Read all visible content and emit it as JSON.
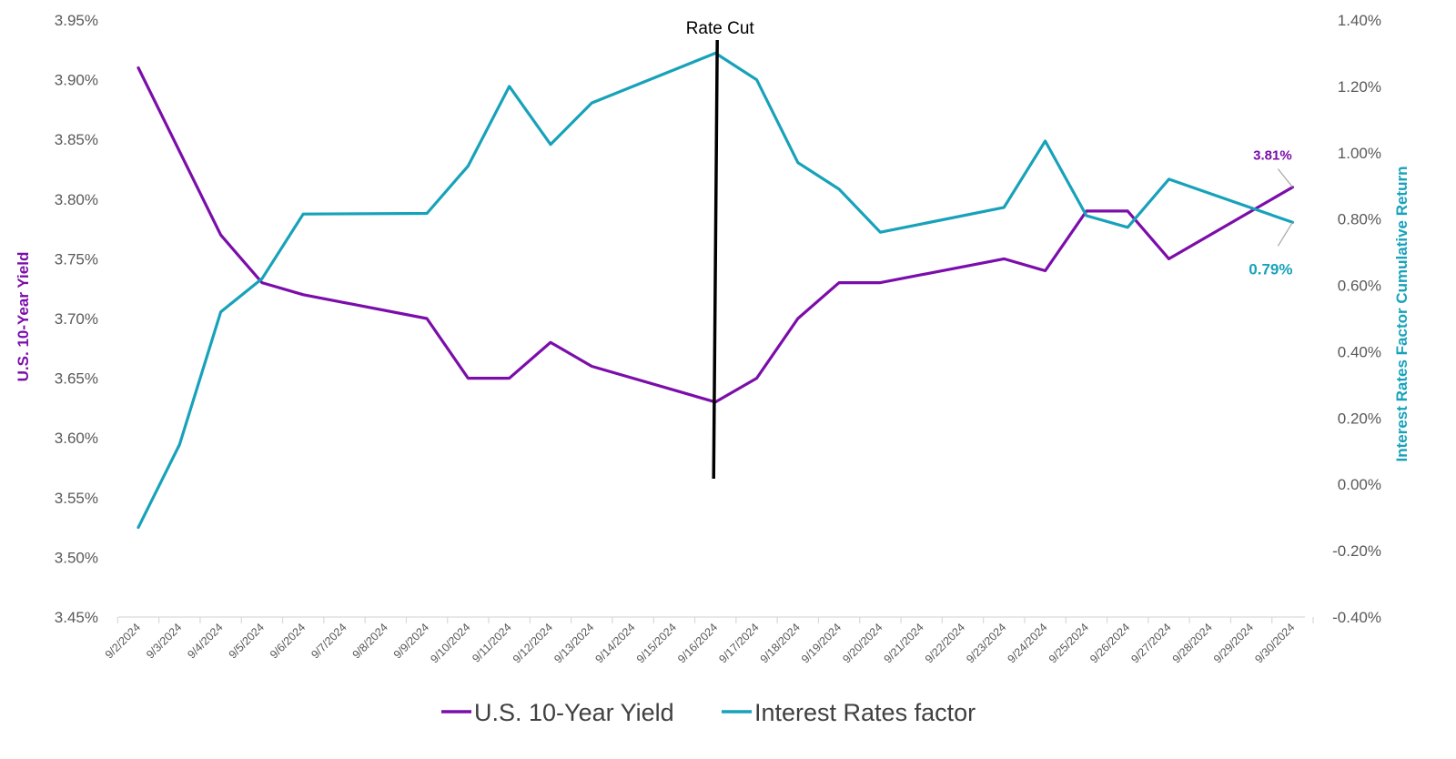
{
  "chart_data": {
    "type": "line",
    "categories": [
      "9/2/2024",
      "9/3/2024",
      "9/4/2024",
      "9/5/2024",
      "9/6/2024",
      "9/7/2024",
      "9/8/2024",
      "9/9/2024",
      "9/10/2024",
      "9/11/2024",
      "9/12/2024",
      "9/13/2024",
      "9/14/2024",
      "9/15/2024",
      "9/16/2024",
      "9/17/2024",
      "9/18/2024",
      "9/19/2024",
      "9/20/2024",
      "9/21/2024",
      "9/22/2024",
      "9/23/2024",
      "9/24/2024",
      "9/25/2024",
      "9/26/2024",
      "9/27/2024",
      "9/28/2024",
      "9/29/2024",
      "9/30/2024"
    ],
    "series": [
      {
        "name": "U.S. 10-Year Yield",
        "axis": "left",
        "color": "#7B0DAB",
        "values": [
          3.91,
          null,
          3.77,
          3.73,
          3.72,
          null,
          null,
          3.7,
          3.65,
          3.65,
          3.68,
          3.66,
          null,
          null,
          3.63,
          3.65,
          3.7,
          3.73,
          3.73,
          null,
          null,
          3.75,
          3.74,
          3.79,
          3.79,
          3.75,
          null,
          null,
          3.81
        ]
      },
      {
        "name": "Interest Rates factor",
        "axis": "right",
        "color": "#17A2BA",
        "values": [
          -0.13,
          0.12,
          0.52,
          0.62,
          0.815,
          null,
          null,
          0.817,
          0.96,
          1.2,
          1.025,
          1.15,
          null,
          null,
          1.3,
          1.22,
          0.97,
          0.89,
          0.76,
          null,
          null,
          0.835,
          1.035,
          0.81,
          0.775,
          0.92,
          null,
          null,
          0.79
        ]
      }
    ],
    "y_left": {
      "label": "U.S. 10-Year Yield",
      "ylim": [
        3.45,
        3.95
      ],
      "ticks": [
        "3.95%",
        "3.90%",
        "3.85%",
        "3.80%",
        "3.75%",
        "3.70%",
        "3.65%",
        "3.60%",
        "3.55%",
        "3.50%",
        "3.45%"
      ]
    },
    "y_right": {
      "label": "Interest Rates Factor Cumulative Return",
      "ylim": [
        -0.4,
        1.4
      ],
      "ticks": [
        "1.40%",
        "1.20%",
        "1.00%",
        "0.80%",
        "0.60%",
        "0.40%",
        "0.20%",
        "0.00%",
        "-0.20%",
        "-0.40%"
      ]
    },
    "annotations": [
      {
        "text": "Rate Cut",
        "at_category": "9/16/2024"
      }
    ],
    "data_labels": [
      {
        "series": "U.S. 10-Year Yield",
        "category": "9/30/2024",
        "text": "3.81%"
      },
      {
        "series": "Interest Rates factor",
        "category": "9/30/2024",
        "text": "0.79%"
      }
    ],
    "legend": {
      "position": "bottom"
    },
    "grid": false
  }
}
